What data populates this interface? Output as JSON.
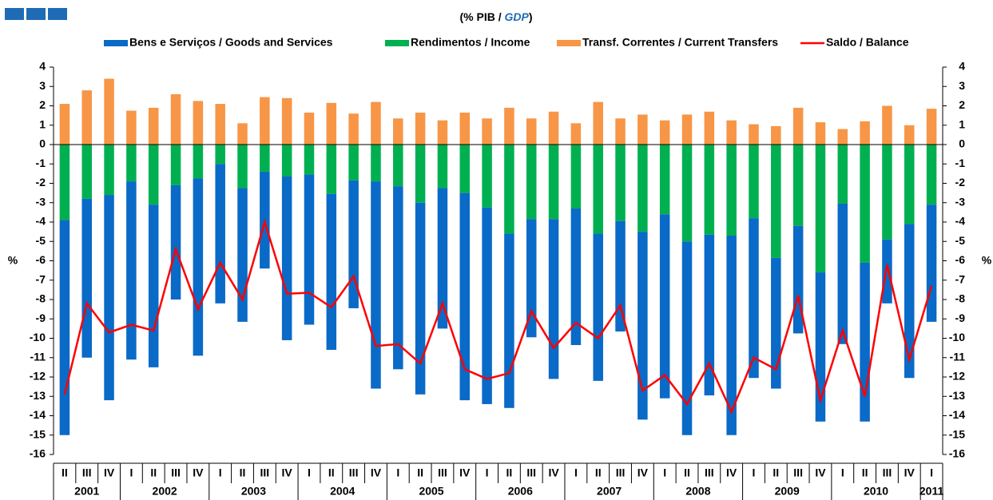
{
  "chart_data": {
    "type": "stacked-bar-line",
    "subtitle": [
      "(% PIB / ",
      "GDP",
      ")"
    ],
    "y_label": "%",
    "y2_label": "%",
    "category_groups": [
      {
        "label": "2001",
        "categories": [
          "II",
          "III",
          "IV"
        ]
      },
      {
        "label": "2002",
        "categories": [
          "I",
          "II",
          "III",
          "IV"
        ]
      },
      {
        "label": "2003",
        "categories": [
          "I",
          "II",
          "III",
          "IV"
        ]
      },
      {
        "label": "2004",
        "categories": [
          "I",
          "II",
          "III",
          "IV"
        ]
      },
      {
        "label": "2005",
        "categories": [
          "I",
          "II",
          "III",
          "IV"
        ]
      },
      {
        "label": "2006",
        "categories": [
          "I",
          "II",
          "III",
          "IV"
        ]
      },
      {
        "label": "2007",
        "categories": [
          "I",
          "II",
          "III",
          "IV"
        ]
      },
      {
        "label": "2008",
        "categories": [
          "I",
          "II",
          "III",
          "IV"
        ]
      },
      {
        "label": "2009",
        "categories": [
          "I",
          "II",
          "III",
          "IV"
        ]
      },
      {
        "label": "2010",
        "categories": [
          "I",
          "II",
          "III",
          "IV"
        ]
      },
      {
        "label": "2011",
        "categories": [
          "I"
        ]
      }
    ],
    "series": [
      {
        "name": "Bens e Serviços / Goods and Services",
        "type": "bar",
        "color": "#0a6ac7",
        "values": [
          -11.1,
          -8.2,
          -10.6,
          -9.2,
          -8.4,
          -5.9,
          -9.15,
          -7.2,
          -6.9,
          -5.0,
          -8.45,
          -7.75,
          -8.05,
          -6.6,
          -10.7,
          -9.45,
          -9.9,
          -7.25,
          -10.7,
          -10.15,
          -9.0,
          -6.1,
          -8.25,
          -7.05,
          -7.6,
          -5.7,
          -9.7,
          -9.5,
          -10.0,
          -8.3,
          -10.3,
          -8.25,
          -6.75,
          -5.55,
          -7.7,
          -7.25,
          -8.2,
          -3.3,
          -7.95,
          -6.05
        ]
      },
      {
        "name": "Rendimentos / Income",
        "type": "bar",
        "color": "#00b050",
        "values": [
          -3.9,
          -2.8,
          -2.6,
          -1.9,
          -3.1,
          -2.1,
          -1.75,
          -1.0,
          -2.25,
          -1.4,
          -1.65,
          -1.55,
          -2.55,
          -1.85,
          -1.9,
          -2.15,
          -3.0,
          -2.25,
          -2.5,
          -3.25,
          -4.6,
          -3.85,
          -3.85,
          -3.3,
          -4.6,
          -3.95,
          -4.5,
          -3.6,
          -5.0,
          -4.65,
          -4.7,
          -3.8,
          -5.85,
          -4.2,
          -6.6,
          -3.05,
          -6.1,
          -4.9,
          -4.1,
          -3.1
        ]
      },
      {
        "name": "Transf. Correntes / Current Transfers",
        "type": "bar",
        "color": "#f79646",
        "values": [
          2.1,
          2.8,
          3.4,
          1.75,
          1.9,
          2.6,
          2.25,
          2.1,
          1.1,
          2.45,
          2.4,
          1.65,
          2.15,
          1.6,
          2.2,
          1.35,
          1.65,
          1.25,
          1.65,
          1.35,
          1.9,
          1.35,
          1.7,
          1.1,
          2.2,
          1.35,
          1.55,
          1.25,
          1.55,
          1.7,
          1.25,
          1.05,
          0.95,
          1.9,
          1.15,
          0.8,
          1.2,
          2.0,
          1.0,
          1.85
        ]
      },
      {
        "name": "Saldo / Balance",
        "type": "line",
        "color": "#ff0000",
        "values": [
          -12.9,
          -8.2,
          -9.7,
          -9.3,
          -9.6,
          -5.4,
          -8.5,
          -6.1,
          -8.0,
          -4.0,
          -7.7,
          -7.65,
          -8.4,
          -6.8,
          -10.4,
          -10.3,
          -11.3,
          -8.2,
          -11.6,
          -12.1,
          -11.8,
          -8.6,
          -10.5,
          -9.2,
          -10.0,
          -8.3,
          -12.7,
          -11.9,
          -13.4,
          -11.3,
          -13.8,
          -11.0,
          -11.6,
          -7.8,
          -13.2,
          -9.6,
          -13.0,
          -6.2,
          -11.1,
          -7.3
        ]
      }
    ],
    "ylim": [
      -16,
      4
    ],
    "yticks": [
      -16,
      -15,
      -14,
      -13,
      -12,
      -11,
      -10,
      -9,
      -8,
      -7,
      -6,
      -5,
      -4,
      -3,
      -2,
      -1,
      0,
      1,
      2,
      3,
      4
    ],
    "y2lim": [
      -16,
      4
    ],
    "y2ticks": [
      -16,
      -15,
      -14,
      -13,
      -12,
      -11,
      -10,
      -9,
      -8,
      -7,
      -6,
      -5,
      -4,
      -3,
      -2,
      -1,
      0,
      1,
      2,
      3,
      4
    ],
    "legend": "top"
  }
}
